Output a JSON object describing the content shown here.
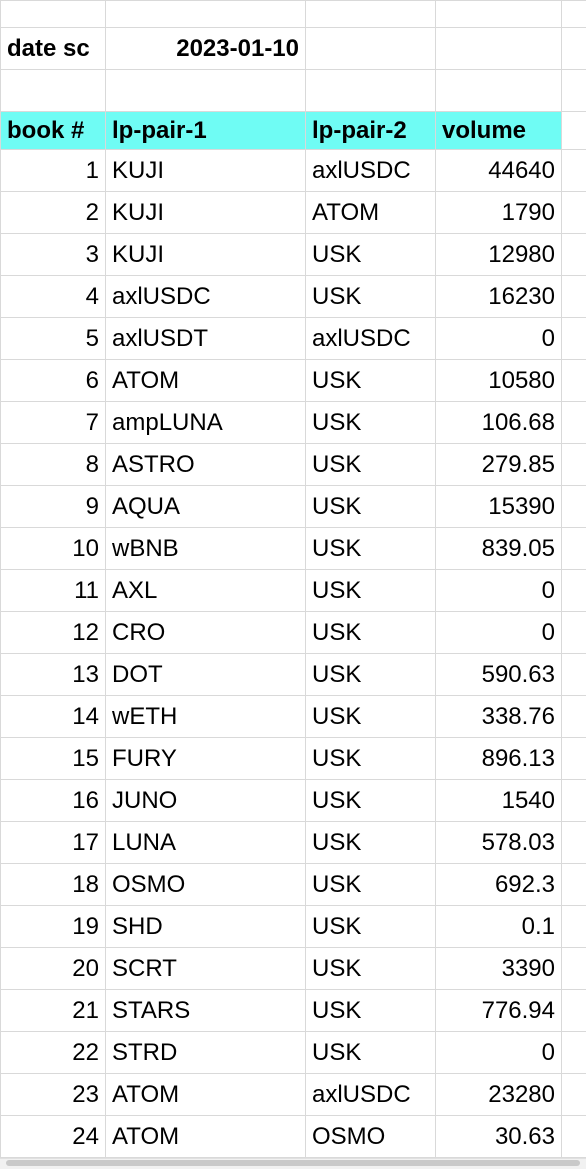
{
  "title_row": {
    "label": "date sc",
    "date": "2023-01-10"
  },
  "headers": [
    "book #",
    "lp-pair-1",
    "lp-pair-2",
    "volume"
  ],
  "rows": [
    {
      "book": "1",
      "pair1": "KUJI",
      "pair2": "axlUSDC",
      "volume": "44640"
    },
    {
      "book": "2",
      "pair1": "KUJI",
      "pair2": "ATOM",
      "volume": "1790"
    },
    {
      "book": "3",
      "pair1": "KUJI",
      "pair2": "USK",
      "volume": "12980"
    },
    {
      "book": "4",
      "pair1": "axlUSDC",
      "pair2": "USK",
      "volume": "16230"
    },
    {
      "book": "5",
      "pair1": "axlUSDT",
      "pair2": "axlUSDC",
      "volume": "0"
    },
    {
      "book": "6",
      "pair1": "ATOM",
      "pair2": "USK",
      "volume": "10580"
    },
    {
      "book": "7",
      "pair1": "ampLUNA",
      "pair2": "USK",
      "volume": "106.68"
    },
    {
      "book": "8",
      "pair1": "ASTRO",
      "pair2": "USK",
      "volume": "279.85"
    },
    {
      "book": "9",
      "pair1": "AQUA",
      "pair2": "USK",
      "volume": "15390"
    },
    {
      "book": "10",
      "pair1": "wBNB",
      "pair2": "USK",
      "volume": "839.05"
    },
    {
      "book": "11",
      "pair1": "AXL",
      "pair2": "USK",
      "volume": "0"
    },
    {
      "book": "12",
      "pair1": "CRO",
      "pair2": "USK",
      "volume": "0"
    },
    {
      "book": "13",
      "pair1": "DOT",
      "pair2": "USK",
      "volume": "590.63"
    },
    {
      "book": "14",
      "pair1": "wETH",
      "pair2": "USK",
      "volume": "338.76"
    },
    {
      "book": "15",
      "pair1": "FURY",
      "pair2": "USK",
      "volume": "896.13"
    },
    {
      "book": "16",
      "pair1": "JUNO",
      "pair2": "USK",
      "volume": "1540"
    },
    {
      "book": "17",
      "pair1": "LUNA",
      "pair2": "USK",
      "volume": "578.03"
    },
    {
      "book": "18",
      "pair1": "OSMO",
      "pair2": "USK",
      "volume": "692.3"
    },
    {
      "book": "19",
      "pair1": "SHD",
      "pair2": "USK",
      "volume": "0.1"
    },
    {
      "book": "20",
      "pair1": "SCRT",
      "pair2": "USK",
      "volume": "3390"
    },
    {
      "book": "21",
      "pair1": "STARS",
      "pair2": "USK",
      "volume": "776.94"
    },
    {
      "book": "22",
      "pair1": "STRD",
      "pair2": "USK",
      "volume": "0"
    },
    {
      "book": "23",
      "pair1": "ATOM",
      "pair2": "axlUSDC",
      "volume": "23280"
    },
    {
      "book": "24",
      "pair1": "ATOM",
      "pair2": "OSMO",
      "volume": "30.63"
    }
  ],
  "colors": {
    "header_fill": "#6ffcf4",
    "gridline": "#d9d9d9"
  }
}
